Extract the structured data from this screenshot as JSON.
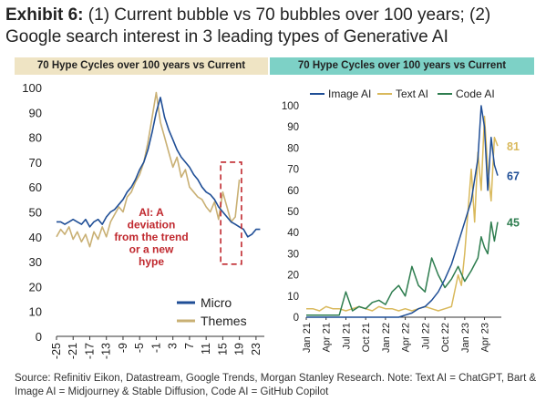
{
  "header": {
    "exhibit_label": "Exhibit 6:",
    "title_text": "(1) Current bubble vs 70 bubbles over 100 years; (2) Google search interest in 3 leading types of Generative AI"
  },
  "panels": {
    "left_title": "70 Hype Cycles over 100 years vs Current",
    "right_title": "70 Hype Cycles over 100 years vs Current"
  },
  "footer": {
    "source": "Source: Refinitiv Eikon, Datastream, Google Trends, Morgan Stanley Research. Note: Text AI = ChatGPT, Bart & Image AI = Midjourney & Stable Diffusion, Code AI = GitHub Copilot"
  },
  "colors": {
    "micro": "#1f4e96",
    "themes": "#c9b074",
    "image_ai": "#1f4e96",
    "text_ai": "#d9b95c",
    "code_ai": "#2e7d4f",
    "annotation": "#c0282e",
    "left_banner": "#efe4c4",
    "right_banner": "#7dd1c6"
  },
  "chart_data": [
    {
      "type": "line",
      "title": "70 Hype Cycles over 100 years vs Current",
      "x_ticks": [
        -25,
        -21,
        -17,
        -13,
        -9,
        -5,
        -1,
        3,
        7,
        11,
        15,
        19,
        23
      ],
      "y_ticks": [
        0,
        10,
        20,
        30,
        40,
        50,
        60,
        70,
        80,
        90,
        100
      ],
      "xlim": [
        -25,
        25
      ],
      "ylim": [
        0,
        100
      ],
      "legend_position": "bottom-right",
      "annotation": "AI: A deviation from the trend or a new hype",
      "series": [
        {
          "name": "Micro",
          "x": [
            -25,
            -24,
            -23,
            -22,
            -21,
            -20,
            -19,
            -18,
            -17,
            -16,
            -15,
            -14,
            -13,
            -12,
            -11,
            -10,
            -9,
            -8,
            -7,
            -6,
            -5,
            -4,
            -3,
            -2,
            -1,
            0,
            1,
            2,
            3,
            4,
            5,
            6,
            7,
            8,
            9,
            10,
            11,
            12,
            13,
            14,
            15,
            16,
            17,
            18,
            19,
            20,
            21,
            22,
            23,
            24
          ],
          "values": [
            46,
            46,
            45,
            46,
            47,
            46,
            45,
            47,
            44,
            46,
            47,
            45,
            48,
            50,
            51,
            53,
            55,
            58,
            60,
            63,
            67,
            70,
            75,
            82,
            90,
            96,
            88,
            83,
            79,
            75,
            72,
            70,
            68,
            65,
            63,
            60,
            58,
            57,
            55,
            52,
            50,
            48,
            46,
            45,
            44,
            43,
            40,
            41,
            43,
            43
          ]
        },
        {
          "name": "Themes",
          "x": [
            -25,
            -24,
            -23,
            -22,
            -21,
            -20,
            -19,
            -18,
            -17,
            -16,
            -15,
            -14,
            -13,
            -12,
            -11,
            -10,
            -9,
            -8,
            -7,
            -6,
            -5,
            -4,
            -3,
            -2,
            -1,
            0,
            1,
            2,
            3,
            4,
            5,
            6,
            7,
            8,
            9,
            10,
            11,
            12,
            13,
            14,
            15,
            16,
            17,
            18,
            19
          ],
          "values": [
            40,
            43,
            41,
            44,
            39,
            42,
            38,
            41,
            36,
            42,
            39,
            44,
            40,
            46,
            49,
            52,
            50,
            56,
            58,
            62,
            65,
            70,
            78,
            88,
            98,
            86,
            80,
            74,
            68,
            72,
            64,
            67,
            60,
            58,
            56,
            55,
            52,
            50,
            54,
            47,
            58,
            52,
            46,
            48,
            63
          ]
        }
      ]
    },
    {
      "type": "line",
      "title": "70 Hype Cycles over 100 years vs Current",
      "categories": [
        "Jan 21",
        "Apr 21",
        "Jul 21",
        "Oct 21",
        "Jan 22",
        "Apr 22",
        "Jul 22",
        "Oct 22",
        "Jan 23",
        "Apr 23"
      ],
      "y_ticks": [
        0,
        10,
        20,
        30,
        40,
        50,
        60,
        70,
        80,
        90,
        100
      ],
      "ylim": [
        0,
        100
      ],
      "legend_position": "top",
      "end_labels": [
        {
          "series": "Text AI",
          "value": "81"
        },
        {
          "series": "Image AI",
          "value": "67"
        },
        {
          "series": "Code AI",
          "value": "45"
        }
      ],
      "x_month_index_range": [
        0,
        29
      ],
      "series": [
        {
          "name": "Image AI",
          "x": [
            0,
            2,
            4,
            6,
            8,
            10,
            12,
            14,
            15,
            16,
            17,
            18,
            19,
            20,
            21,
            22,
            23,
            24,
            25,
            26,
            26.5,
            27,
            27.5,
            28,
            28.5,
            29
          ],
          "values": [
            0,
            0,
            0,
            0,
            0,
            0,
            0,
            0,
            1,
            2,
            4,
            5,
            8,
            12,
            18,
            25,
            35,
            45,
            55,
            75,
            100,
            90,
            60,
            85,
            72,
            67
          ]
        },
        {
          "name": "Text AI",
          "x": [
            0,
            1,
            2,
            3,
            4,
            5,
            6,
            7,
            8,
            9,
            10,
            11,
            12,
            13,
            14,
            15,
            16,
            17,
            18,
            19,
            20,
            21,
            22,
            23,
            23.5,
            24,
            24.5,
            25,
            25.5,
            26,
            26.5,
            27,
            27.5,
            28,
            28.5,
            29
          ],
          "values": [
            4,
            4,
            3,
            5,
            4,
            4,
            3,
            4,
            5,
            4,
            3,
            5,
            4,
            4,
            3,
            4,
            3,
            4,
            5,
            4,
            3,
            4,
            5,
            20,
            15,
            30,
            50,
            70,
            45,
            78,
            60,
            95,
            70,
            55,
            85,
            81
          ]
        },
        {
          "name": "Code AI",
          "x": [
            0,
            1,
            2,
            3,
            4,
            5,
            6,
            7,
            8,
            9,
            10,
            11,
            12,
            13,
            14,
            15,
            16,
            17,
            18,
            19,
            20,
            21,
            22,
            23,
            24,
            25,
            26,
            26.5,
            27,
            27.5,
            28,
            28.5,
            29
          ],
          "values": [
            1,
            1,
            1,
            1,
            1,
            1,
            12,
            3,
            5,
            4,
            7,
            8,
            6,
            12,
            15,
            10,
            24,
            15,
            12,
            28,
            20,
            14,
            18,
            24,
            17,
            22,
            28,
            38,
            33,
            30,
            45,
            36,
            45
          ]
        }
      ]
    }
  ]
}
